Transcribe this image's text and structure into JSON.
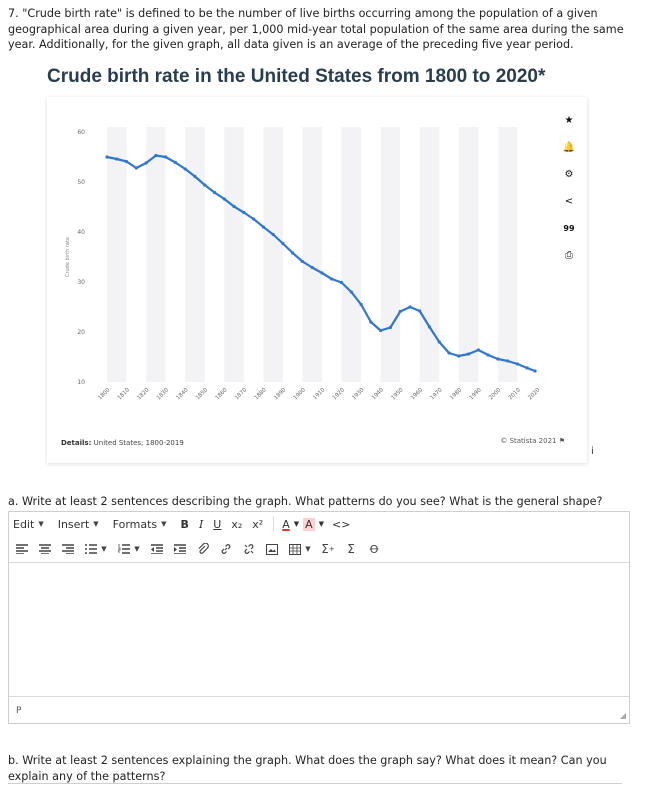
{
  "question": {
    "text": "7. \"Crude birth rate\" is defined to be the number of live births occurring among the population of a given geographical area during a given year, per 1,000 mid-year total population of the same area during the same year. Additionally, for the given graph, all data given is an average of the preceding five year period."
  },
  "chart_data": {
    "type": "line",
    "title": "Crude birth rate in the United States from 1800 to 2020*",
    "xlabel": "",
    "ylabel": "Crude birth rate",
    "ylim": [
      10,
      60
    ],
    "yticks": [
      10,
      20,
      30,
      40,
      50,
      60
    ],
    "xtick_labels": [
      "1800",
      "1810",
      "1820",
      "1830",
      "1840",
      "1850",
      "1860",
      "1870",
      "1880",
      "1890",
      "1900",
      "1910",
      "1920",
      "1930",
      "1940",
      "1950",
      "1960",
      "1970",
      "1980",
      "1990",
      "2000",
      "2010",
      "2020"
    ],
    "grid": false,
    "legend": "none",
    "series": [
      {
        "color": "#2f77d1",
        "x": [
          1800,
          1805,
          1810,
          1815,
          1820,
          1825,
          1830,
          1835,
          1840,
          1845,
          1850,
          1855,
          1860,
          1865,
          1870,
          1875,
          1880,
          1885,
          1890,
          1895,
          1900,
          1905,
          1910,
          1915,
          1920,
          1925,
          1930,
          1935,
          1940,
          1945,
          1950,
          1955,
          1960,
          1965,
          1970,
          1975,
          1980,
          1985,
          1990,
          1995,
          2000,
          2005,
          2010,
          2015,
          2019
        ],
        "values": [
          55.0,
          54.6,
          54.1,
          52.8,
          53.8,
          55.3,
          55.0,
          53.9,
          52.6,
          51.1,
          49.4,
          47.9,
          46.6,
          45.1,
          43.9,
          42.6,
          41.0,
          39.5,
          37.7,
          35.8,
          34.1,
          32.9,
          31.8,
          30.6,
          29.9,
          28.0,
          25.5,
          22.0,
          20.3,
          20.9,
          24.1,
          25.0,
          24.2,
          21.0,
          18.0,
          15.8,
          15.2,
          15.6,
          16.4,
          15.4,
          14.6,
          14.2,
          13.6,
          12.8,
          12.2
        ]
      }
    ]
  },
  "chart_meta": {
    "details_label": "Details:",
    "details_text": "United States; 1800-2019",
    "credit": "© Statista 2021",
    "info_icon": "i"
  },
  "chart_tools": [
    {
      "name": "star-icon",
      "glyph": "★"
    },
    {
      "name": "bell-icon",
      "glyph": "🔔"
    },
    {
      "name": "gear-icon",
      "glyph": "⚙"
    },
    {
      "name": "share-icon",
      "glyph": "<"
    },
    {
      "name": "quote-icon",
      "glyph": "99"
    },
    {
      "name": "print-icon",
      "glyph": "⎙"
    }
  ],
  "part_a": {
    "prompt": "a. Write at least 2 sentences describing the graph. What patterns do you see? What is the general shape?"
  },
  "editor": {
    "menus": [
      "Edit",
      "Insert",
      "Formats"
    ],
    "formatting": [
      "B",
      "I",
      "U",
      "x₂",
      "x²",
      "A",
      "A"
    ],
    "source_button": "<>",
    "status_path": "P"
  },
  "part_b": {
    "prompt": "b. Write at least 2 sentences explaining the graph. What does the graph say? What does it mean? Can you explain any of the patterns?"
  }
}
